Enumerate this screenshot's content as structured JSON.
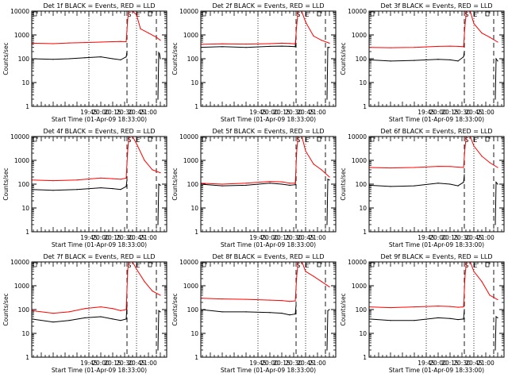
{
  "figure": {
    "colors": {
      "events": "#000000",
      "lld": "#ff0000",
      "axes": "#000000",
      "background": "#ffffff"
    }
  },
  "chart_data": [
    {
      "type": "line",
      "detector": "1f",
      "title": "Det 1f BLACK = Events, RED = LLD",
      "xlabel": "Start Time (01-Apr-09 18:33:00)",
      "ylabel": "Counts/sec",
      "y_scale": "log",
      "ylim": [
        1,
        10000
      ],
      "xtick_labels": [
        "19:45",
        "20:00",
        "20:15",
        "20:30",
        "20:45",
        "21:00"
      ],
      "ytick_labels": [
        "1",
        "10",
        "100",
        "1000",
        "10000"
      ],
      "annotations": [
        "S",
        "E"
      ],
      "series": [
        {
          "name": "BLACK = Events",
          "color": "#000000",
          "x": [
            "18:33",
            "19:00",
            "19:20",
            "19:40",
            "20:00",
            "20:15",
            "20:25",
            "20:32",
            "20:33",
            "20:35",
            "20:40",
            "20:50",
            "21:00",
            "21:10",
            "21:12",
            "21:13",
            "21:14",
            "21:15"
          ],
          "y": [
            100,
            95,
            100,
            110,
            120,
            100,
            90,
            120,
            200,
            null,
            null,
            null,
            null,
            null,
            2,
            180,
            160,
            100
          ]
        },
        {
          "name": "RED = LLD",
          "color": "#ff0000",
          "x": [
            "18:33",
            "19:00",
            "19:20",
            "19:40",
            "20:00",
            "20:15",
            "20:25",
            "20:32",
            "20:34",
            "20:36",
            "20:40",
            "20:45",
            "20:50",
            "21:00",
            "21:10",
            "21:15"
          ],
          "y": [
            450,
            430,
            460,
            480,
            500,
            520,
            530,
            520,
            5000,
            12000,
            10000,
            7000,
            1800,
            1200,
            800,
            600
          ]
        }
      ]
    },
    {
      "type": "line",
      "detector": "2f",
      "title": "Det 2f BLACK = Events, RED = LLD",
      "xlabel": "Start Time (01-Apr-09 18:33:00)",
      "ylabel": "Counts/sec",
      "y_scale": "log",
      "ylim": [
        1,
        10000
      ],
      "xtick_labels": [
        "19:45",
        "20:00",
        "20:15",
        "20:30",
        "20:45",
        "21:00"
      ],
      "ytick_labels": [
        "1",
        "10",
        "100",
        "1000",
        "10000"
      ],
      "annotations": [
        "S",
        "E"
      ],
      "series": [
        {
          "name": "BLACK = Events",
          "color": "#000000",
          "x": [
            "18:33",
            "19:00",
            "19:30",
            "20:00",
            "20:15",
            "20:25",
            "20:32",
            "20:33",
            "20:40",
            "21:00",
            "21:12",
            "21:13",
            "21:15"
          ],
          "y": [
            300,
            320,
            300,
            330,
            340,
            330,
            320,
            900,
            null,
            null,
            2,
            300,
            300
          ]
        },
        {
          "name": "RED = LLD",
          "color": "#ff0000",
          "x": [
            "18:33",
            "19:00",
            "19:30",
            "20:00",
            "20:15",
            "20:25",
            "20:32",
            "20:34",
            "20:36",
            "20:40",
            "20:45",
            "20:55",
            "21:05",
            "21:15"
          ],
          "y": [
            400,
            420,
            410,
            430,
            450,
            440,
            420,
            3000,
            12000,
            10000,
            3500,
            900,
            600,
            450
          ]
        }
      ]
    },
    {
      "type": "line",
      "detector": "3f",
      "title": "Det 3f BLACK = Events, RED = LLD",
      "xlabel": "Start Time (01-Apr-09 18:33:00)",
      "ylabel": "Counts/sec",
      "y_scale": "log",
      "ylim": [
        1,
        10000
      ],
      "xtick_labels": [
        "19:45",
        "20:00",
        "20:15",
        "20:30",
        "20:45",
        "21:00"
      ],
      "ytick_labels": [
        "1",
        "10",
        "100",
        "1000",
        "10000"
      ],
      "annotations": [
        "S",
        "E"
      ],
      "series": [
        {
          "name": "BLACK = Events",
          "color": "#000000",
          "x": [
            "18:33",
            "19:00",
            "19:30",
            "20:00",
            "20:15",
            "20:25",
            "20:32",
            "20:33",
            "20:40",
            "21:00",
            "21:12",
            "21:13",
            "21:15"
          ],
          "y": [
            90,
            80,
            85,
            95,
            90,
            80,
            120,
            200,
            null,
            null,
            2,
            100,
            80
          ]
        },
        {
          "name": "RED = LLD",
          "color": "#ff0000",
          "x": [
            "18:33",
            "19:00",
            "19:30",
            "20:00",
            "20:15",
            "20:25",
            "20:32",
            "20:34",
            "20:36",
            "20:40",
            "20:45",
            "20:55",
            "21:05",
            "21:15"
          ],
          "y": [
            300,
            290,
            300,
            330,
            340,
            330,
            320,
            3000,
            12000,
            11000,
            3000,
            1200,
            800,
            500
          ]
        }
      ]
    },
    {
      "type": "line",
      "detector": "4f",
      "title": "Det 4f BLACK = Events, RED = LLD",
      "xlabel": "Start Time (01-Apr-09 18:33:00)",
      "ylabel": "Counts/sec",
      "y_scale": "log",
      "ylim": [
        1,
        10000
      ],
      "xtick_labels": [
        "19:45",
        "20:00",
        "20:15",
        "20:30",
        "20:45",
        "21:00"
      ],
      "ytick_labels": [
        "1",
        "10",
        "100",
        "1000",
        "10000"
      ],
      "annotations": [
        "S",
        "E"
      ],
      "series": [
        {
          "name": "BLACK = Events",
          "color": "#000000",
          "x": [
            "18:33",
            "19:00",
            "19:30",
            "20:00",
            "20:15",
            "20:25",
            "20:32",
            "20:33",
            "20:40",
            "21:00",
            "21:12",
            "21:13",
            "21:15"
          ],
          "y": [
            60,
            55,
            60,
            70,
            65,
            60,
            80,
            150,
            null,
            null,
            2,
            100,
            90
          ]
        },
        {
          "name": "RED = LLD",
          "color": "#ff0000",
          "x": [
            "18:33",
            "19:00",
            "19:30",
            "20:00",
            "20:15",
            "20:25",
            "20:32",
            "20:34",
            "20:36",
            "20:40",
            "20:45",
            "20:55",
            "21:05",
            "21:15"
          ],
          "y": [
            150,
            140,
            150,
            180,
            170,
            160,
            180,
            3000,
            12000,
            10000,
            5000,
            1000,
            400,
            300
          ]
        }
      ]
    },
    {
      "type": "line",
      "detector": "5f",
      "title": "Det 5f BLACK = Events, RED = LLD",
      "xlabel": "Start Time (01-Apr-09 18:33:00)",
      "ylabel": "Counts/sec",
      "y_scale": "log",
      "ylim": [
        1,
        10000
      ],
      "xtick_labels": [
        "19:45",
        "20:00",
        "20:15",
        "20:30",
        "20:45",
        "21:00"
      ],
      "ytick_labels": [
        "1",
        "10",
        "100",
        "1000",
        "10000"
      ],
      "annotations": [
        "S",
        "E"
      ],
      "series": [
        {
          "name": "BLACK = Events",
          "color": "#000000",
          "x": [
            "18:33",
            "19:00",
            "19:30",
            "20:00",
            "20:15",
            "20:25",
            "20:32",
            "20:33",
            "20:40",
            "21:00",
            "21:12",
            "21:13",
            "21:15"
          ],
          "y": [
            100,
            85,
            90,
            110,
            100,
            90,
            95,
            200,
            null,
            null,
            2,
            160,
            150
          ]
        },
        {
          "name": "RED = LLD",
          "color": "#ff0000",
          "x": [
            "18:33",
            "19:00",
            "19:30",
            "20:00",
            "20:15",
            "20:25",
            "20:32",
            "20:34",
            "20:36",
            "20:40",
            "20:45",
            "20:55",
            "21:05",
            "21:15"
          ],
          "y": [
            110,
            100,
            110,
            130,
            125,
            110,
            110,
            3000,
            12000,
            11000,
            2500,
            700,
            400,
            200
          ]
        }
      ]
    },
    {
      "type": "line",
      "detector": "6f",
      "title": "Det 6f BLACK = Events, RED = LLD",
      "xlabel": "Start Time (01-Apr-09 18:33:00)",
      "ylabel": "Counts/sec",
      "y_scale": "log",
      "ylim": [
        1,
        10000
      ],
      "xtick_labels": [
        "19:45",
        "20:00",
        "20:15",
        "20:30",
        "20:45",
        "21:00"
      ],
      "ytick_labels": [
        "1",
        "10",
        "100",
        "1000",
        "10000"
      ],
      "annotations": [
        "S",
        "E"
      ],
      "series": [
        {
          "name": "BLACK = Events",
          "color": "#000000",
          "x": [
            "18:33",
            "19:00",
            "19:30",
            "20:00",
            "20:15",
            "20:25",
            "20:32",
            "20:33",
            "20:40",
            "21:00",
            "21:12",
            "21:13",
            "21:15"
          ],
          "y": [
            90,
            80,
            85,
            110,
            100,
            85,
            120,
            250,
            null,
            null,
            2,
            120,
            100
          ]
        },
        {
          "name": "RED = LLD",
          "color": "#ff0000",
          "x": [
            "18:33",
            "19:00",
            "19:30",
            "20:00",
            "20:15",
            "20:25",
            "20:32",
            "20:34",
            "20:36",
            "20:40",
            "20:45",
            "20:55",
            "21:05",
            "21:15"
          ],
          "y": [
            500,
            480,
            500,
            560,
            550,
            520,
            500,
            4000,
            12000,
            11000,
            4000,
            1500,
            800,
            500
          ]
        }
      ]
    },
    {
      "type": "line",
      "detector": "7f",
      "title": "Det 7f BLACK = Events, RED = LLD",
      "xlabel": "Start Time (01-Apr-09 18:33:00)",
      "ylabel": "Counts/sec",
      "y_scale": "log",
      "ylim": [
        1,
        10000
      ],
      "xtick_labels": [
        "19:45",
        "20:00",
        "20:15",
        "20:30",
        "20:45",
        "21:00"
      ],
      "ytick_labels": [
        "1",
        "10",
        "100",
        "1000",
        "10000"
      ],
      "annotations": [
        "S",
        "E"
      ],
      "series": [
        {
          "name": "BLACK = Events",
          "color": "#000000",
          "x": [
            "18:33",
            "19:00",
            "19:20",
            "19:40",
            "20:00",
            "20:15",
            "20:25",
            "20:32",
            "20:33",
            "20:40",
            "21:00",
            "21:12",
            "21:13",
            "21:15"
          ],
          "y": [
            40,
            30,
            35,
            45,
            50,
            40,
            35,
            40,
            150,
            null,
            null,
            2,
            90,
            80
          ]
        },
        {
          "name": "RED = LLD",
          "color": "#ff0000",
          "x": [
            "18:33",
            "19:00",
            "19:20",
            "19:40",
            "20:00",
            "20:15",
            "20:25",
            "20:32",
            "20:34",
            "20:36",
            "20:40",
            "20:45",
            "20:55",
            "21:05",
            "21:15"
          ],
          "y": [
            90,
            70,
            80,
            110,
            130,
            110,
            90,
            100,
            5000,
            12000,
            10000,
            5000,
            1500,
            600,
            400
          ]
        }
      ]
    },
    {
      "type": "line",
      "detector": "8f",
      "title": "Det 8f BLACK = Events, RED = LLD",
      "xlabel": "Start Time (01-Apr-09 18:33:00)",
      "ylabel": "Counts/sec",
      "y_scale": "log",
      "ylim": [
        1,
        10000
      ],
      "xtick_labels": [
        "19:45",
        "20:00",
        "20:15",
        "20:30",
        "20:45",
        "21:00"
      ],
      "ytick_labels": [
        "1",
        "10",
        "100",
        "1000",
        "10000"
      ],
      "annotations": [
        "S",
        "E"
      ],
      "series": [
        {
          "name": "BLACK = Events",
          "color": "#000000",
          "x": [
            "18:33",
            "19:00",
            "19:30",
            "20:00",
            "20:15",
            "20:25",
            "20:32",
            "20:33",
            "20:40",
            "21:00",
            "21:12",
            "21:13",
            "21:15"
          ],
          "y": [
            100,
            80,
            80,
            75,
            70,
            60,
            65,
            150,
            null,
            null,
            2,
            90,
            100
          ]
        },
        {
          "name": "RED = LLD",
          "color": "#ff0000",
          "x": [
            "18:33",
            "19:00",
            "19:30",
            "20:00",
            "20:15",
            "20:25",
            "20:32",
            "20:34",
            "20:36",
            "20:40",
            "20:45",
            "20:55",
            "21:05",
            "21:15"
          ],
          "y": [
            300,
            280,
            270,
            250,
            240,
            220,
            230,
            3000,
            12000,
            11000,
            4000,
            2500,
            1500,
            900
          ]
        }
      ]
    },
    {
      "type": "line",
      "detector": "9f",
      "title": "Det 9f BLACK = Events, RED = LLD",
      "xlabel": "Start Time (01-Apr-09 18:33:00)",
      "ylabel": "Counts/sec",
      "y_scale": "log",
      "ylim": [
        1,
        10000
      ],
      "xtick_labels": [
        "19:45",
        "20:00",
        "20:15",
        "20:30",
        "20:45",
        "21:00"
      ],
      "ytick_labels": [
        "1",
        "10",
        "100",
        "1000",
        "10000"
      ],
      "annotations": [
        "S",
        "E"
      ],
      "series": [
        {
          "name": "BLACK = Events",
          "color": "#000000",
          "x": [
            "18:33",
            "19:00",
            "19:30",
            "20:00",
            "20:15",
            "20:25",
            "20:32",
            "20:33",
            "20:40",
            "21:00",
            "21:12",
            "21:13",
            "21:15"
          ],
          "y": [
            40,
            35,
            35,
            45,
            42,
            38,
            40,
            100,
            null,
            null,
            2,
            50,
            45
          ]
        },
        {
          "name": "RED = LLD",
          "color": "#ff0000",
          "x": [
            "18:33",
            "19:00",
            "19:30",
            "20:00",
            "20:15",
            "20:25",
            "20:32",
            "20:34",
            "20:36",
            "20:40",
            "20:45",
            "20:55",
            "21:05",
            "21:15"
          ],
          "y": [
            130,
            120,
            130,
            140,
            135,
            125,
            130,
            3000,
            12000,
            11000,
            4000,
            1500,
            400,
            260
          ]
        }
      ]
    }
  ]
}
